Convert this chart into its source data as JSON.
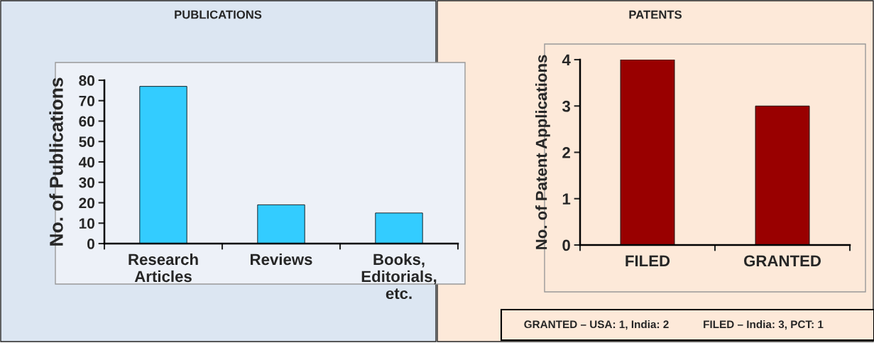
{
  "chart_data": [
    {
      "type": "bar",
      "title": "PUBLICATIONS",
      "ylabel": "No. of Publications",
      "categories": [
        "Research\nArticles",
        "Reviews",
        "Books,\nEditorials,\netc."
      ],
      "values": [
        77,
        19,
        15
      ],
      "color": "#33ccff",
      "ylim": [
        0,
        80
      ],
      "yticks": [
        0,
        10,
        20,
        30,
        40,
        50,
        60,
        70,
        80
      ],
      "grid": false,
      "legend": false
    },
    {
      "type": "bar",
      "title": "PATENTS",
      "ylabel": "No. of Patent Applications",
      "categories": [
        "FILED",
        "GRANTED"
      ],
      "values": [
        4,
        3
      ],
      "color": "#990000",
      "ylim": [
        0,
        4
      ],
      "yticks": [
        0,
        1,
        2,
        3,
        4
      ],
      "grid": false,
      "legend": false,
      "annotations": [
        "GRANTED – USA: 1, India: 2",
        "FILED – India: 3, PCT: 1"
      ]
    }
  ]
}
